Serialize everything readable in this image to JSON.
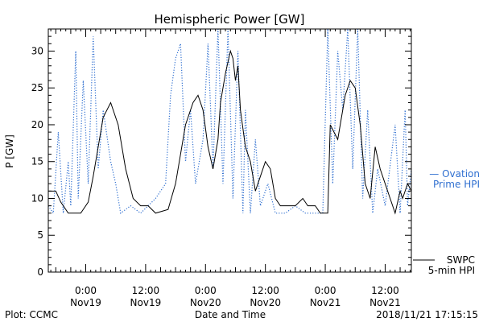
{
  "chart_data": {
    "type": "line",
    "title": "Hemispheric Power [GW]",
    "ylabel": "P [GW]",
    "xlabel": "Date and Time",
    "ylim": [
      0,
      33
    ],
    "yticks": [
      0,
      5,
      10,
      15,
      20,
      25,
      30
    ],
    "xlim": [
      "2018-11-18 16:30",
      "2018-11-21 17:15"
    ],
    "xticks": [
      {
        "time": "2018-11-19 00:00",
        "line1": "0:00",
        "line2": "Nov19"
      },
      {
        "time": "2018-11-19 12:00",
        "line1": "12:00",
        "line2": "Nov19"
      },
      {
        "time": "2018-11-20 00:00",
        "line1": "0:00",
        "line2": "Nov20"
      },
      {
        "time": "2018-11-20 12:00",
        "line1": "12:00",
        "line2": "Nov20"
      },
      {
        "time": "2018-11-21 00:00",
        "line1": "0:00",
        "line2": "Nov21"
      },
      {
        "time": "2018-11-21 12:00",
        "line1": "12:00",
        "line2": "Nov21"
      }
    ],
    "series": [
      {
        "name": "SWPC 5-min HPI",
        "color": "#000000",
        "style": "solid",
        "points": [
          [
            "2018-11-18 16:30",
            11
          ],
          [
            "2018-11-18 18:00",
            11
          ],
          [
            "2018-11-18 19:00",
            9.5
          ],
          [
            "2018-11-18 20:30",
            8
          ],
          [
            "2018-11-18 23:00",
            8
          ],
          [
            "2018-11-19 00:30",
            9.5
          ],
          [
            "2018-11-19 01:30",
            13
          ],
          [
            "2018-11-19 02:30",
            17
          ],
          [
            "2018-11-19 03:30",
            21
          ],
          [
            "2018-11-19 05:00",
            23
          ],
          [
            "2018-11-19 06:30",
            20
          ],
          [
            "2018-11-19 08:00",
            14
          ],
          [
            "2018-11-19 09:30",
            10
          ],
          [
            "2018-11-19 11:00",
            9
          ],
          [
            "2018-11-19 12:30",
            9
          ],
          [
            "2018-11-19 14:00",
            8
          ],
          [
            "2018-11-19 16:30",
            8.5
          ],
          [
            "2018-11-19 18:00",
            12
          ],
          [
            "2018-11-19 19:00",
            16
          ],
          [
            "2018-11-19 20:00",
            20
          ],
          [
            "2018-11-19 21:30",
            23
          ],
          [
            "2018-11-19 22:30",
            24
          ],
          [
            "2018-11-19 23:30",
            22
          ],
          [
            "2018-11-20 00:30",
            17
          ],
          [
            "2018-11-20 01:30",
            14
          ],
          [
            "2018-11-20 02:30",
            18
          ],
          [
            "2018-11-20 03:00",
            23
          ],
          [
            "2018-11-20 04:00",
            27
          ],
          [
            "2018-11-20 05:00",
            30
          ],
          [
            "2018-11-20 05:30",
            29
          ],
          [
            "2018-11-20 06:00",
            26
          ],
          [
            "2018-11-20 06:30",
            28
          ],
          [
            "2018-11-20 07:00",
            22
          ],
          [
            "2018-11-20 08:00",
            17
          ],
          [
            "2018-11-20 09:00",
            15
          ],
          [
            "2018-11-20 10:00",
            11
          ],
          [
            "2018-11-20 11:00",
            13
          ],
          [
            "2018-11-20 12:00",
            15
          ],
          [
            "2018-11-20 13:00",
            14
          ],
          [
            "2018-11-20 14:00",
            10
          ],
          [
            "2018-11-20 15:00",
            9
          ],
          [
            "2018-11-20 18:00",
            9
          ],
          [
            "2018-11-20 19:30",
            10
          ],
          [
            "2018-11-20 20:30",
            9
          ],
          [
            "2018-11-20 22:00",
            9
          ],
          [
            "2018-11-20 23:00",
            8
          ],
          [
            "2018-11-21 00:30",
            8
          ],
          [
            "2018-11-21 01:00",
            20
          ],
          [
            "2018-11-21 02:30",
            18
          ],
          [
            "2018-11-21 04:00",
            24
          ],
          [
            "2018-11-21 05:00",
            26
          ],
          [
            "2018-11-21 06:00",
            25
          ],
          [
            "2018-11-21 07:00",
            20
          ],
          [
            "2018-11-21 08:00",
            12
          ],
          [
            "2018-11-21 09:00",
            10
          ],
          [
            "2018-11-21 10:00",
            17
          ],
          [
            "2018-11-21 11:00",
            14
          ],
          [
            "2018-11-21 12:00",
            12
          ],
          [
            "2018-11-21 13:00",
            10
          ],
          [
            "2018-11-21 14:00",
            8
          ],
          [
            "2018-11-21 15:00",
            11
          ],
          [
            "2018-11-21 15:30",
            10
          ],
          [
            "2018-11-21 16:30",
            12
          ],
          [
            "2018-11-21 17:15",
            11
          ]
        ]
      },
      {
        "name": "Ovation Prime HPI",
        "color": "#2f6fd0",
        "style": "dotted",
        "points": [
          [
            "2018-11-18 16:30",
            9
          ],
          [
            "2018-11-18 17:30",
            8
          ],
          [
            "2018-11-18 18:30",
            19
          ],
          [
            "2018-11-18 19:30",
            8
          ],
          [
            "2018-11-18 20:30",
            15
          ],
          [
            "2018-11-18 21:00",
            9
          ],
          [
            "2018-11-18 22:00",
            30
          ],
          [
            "2018-11-18 22:30",
            10
          ],
          [
            "2018-11-18 23:30",
            26
          ],
          [
            "2018-11-19 00:30",
            12
          ],
          [
            "2018-11-19 01:30",
            32
          ],
          [
            "2018-11-19 02:30",
            14
          ],
          [
            "2018-11-19 03:30",
            22
          ],
          [
            "2018-11-19 05:00",
            15
          ],
          [
            "2018-11-19 06:00",
            12
          ],
          [
            "2018-11-19 07:00",
            8
          ],
          [
            "2018-11-19 09:00",
            9
          ],
          [
            "2018-11-19 11:00",
            8
          ],
          [
            "2018-11-19 14:00",
            10
          ],
          [
            "2018-11-19 16:00",
            12
          ],
          [
            "2018-11-19 17:00",
            24
          ],
          [
            "2018-11-19 18:00",
            29
          ],
          [
            "2018-11-19 19:00",
            31
          ],
          [
            "2018-11-19 20:00",
            15
          ],
          [
            "2018-11-19 21:00",
            22
          ],
          [
            "2018-11-19 22:00",
            12
          ],
          [
            "2018-11-19 23:30",
            18
          ],
          [
            "2018-11-20 00:30",
            31
          ],
          [
            "2018-11-20 01:30",
            14
          ],
          [
            "2018-11-20 02:30",
            33
          ],
          [
            "2018-11-20 03:30",
            12
          ],
          [
            "2018-11-20 04:30",
            33
          ],
          [
            "2018-11-20 05:30",
            10
          ],
          [
            "2018-11-20 06:30",
            30
          ],
          [
            "2018-11-20 07:30",
            8
          ],
          [
            "2018-11-20 08:00",
            22
          ],
          [
            "2018-11-20 09:00",
            8
          ],
          [
            "2018-11-20 10:00",
            18
          ],
          [
            "2018-11-20 11:00",
            9
          ],
          [
            "2018-11-20 12:30",
            12
          ],
          [
            "2018-11-20 14:00",
            8
          ],
          [
            "2018-11-20 16:00",
            8
          ],
          [
            "2018-11-20 18:00",
            9
          ],
          [
            "2018-11-20 20:00",
            8
          ],
          [
            "2018-11-20 22:00",
            8
          ],
          [
            "2018-11-20 23:30",
            8
          ],
          [
            "2018-11-21 00:30",
            33
          ],
          [
            "2018-11-21 01:30",
            12
          ],
          [
            "2018-11-21 02:30",
            30
          ],
          [
            "2018-11-21 03:30",
            22
          ],
          [
            "2018-11-21 04:30",
            33
          ],
          [
            "2018-11-21 05:30",
            14
          ],
          [
            "2018-11-21 06:30",
            33
          ],
          [
            "2018-11-21 07:30",
            10
          ],
          [
            "2018-11-21 08:30",
            22
          ],
          [
            "2018-11-21 09:30",
            8
          ],
          [
            "2018-11-21 10:30",
            14
          ],
          [
            "2018-11-21 12:00",
            9
          ],
          [
            "2018-11-21 14:00",
            20
          ],
          [
            "2018-11-21 15:00",
            8
          ],
          [
            "2018-11-21 16:00",
            22
          ],
          [
            "2018-11-21 16:30",
            9
          ],
          [
            "2018-11-21 17:15",
            14
          ]
        ]
      }
    ],
    "legend": [
      {
        "line1": "— Ovation",
        "line2": "Prime HPI",
        "color": "#2f6fd0"
      },
      {
        "line1": "SWPC",
        "line2": "5-min HPI",
        "color": "#000000"
      }
    ],
    "legend_placement": "right of plot",
    "grid": false
  },
  "footer": {
    "left": "Plot: CCMC",
    "center": "Date and Time",
    "right": "2018/11/21 17:15:15"
  }
}
